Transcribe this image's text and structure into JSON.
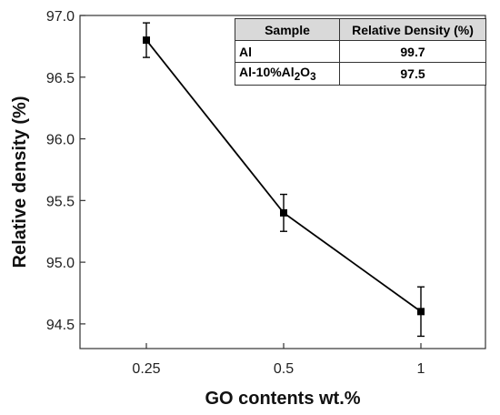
{
  "chart_data": {
    "type": "line",
    "categories": [
      "0.25",
      "0.5",
      "1"
    ],
    "series": [
      {
        "values": [
          96.8,
          95.4,
          94.6
        ],
        "errors": [
          0.14,
          0.15,
          0.2
        ],
        "color": "#000000",
        "marker": "square"
      }
    ],
    "xlabel": "GO contents wt.%",
    "ylabel": "Relative density (%)",
    "ylim": [
      94.3,
      97.0
    ],
    "yticks": [
      "94.5",
      "95.0",
      "95.5",
      "96.0",
      "96.5",
      "97.0"
    ],
    "grid": false,
    "inset_table": {
      "headers": [
        "Sample",
        "Relative Density (%)"
      ],
      "rows": [
        {
          "sample": "Al",
          "value": "99.7"
        },
        {
          "sample": "Al-10%Al",
          "sample_sub1": "2",
          "sample_mid": "O",
          "sample_sub2": "3",
          "value": "97.5"
        }
      ]
    }
  }
}
